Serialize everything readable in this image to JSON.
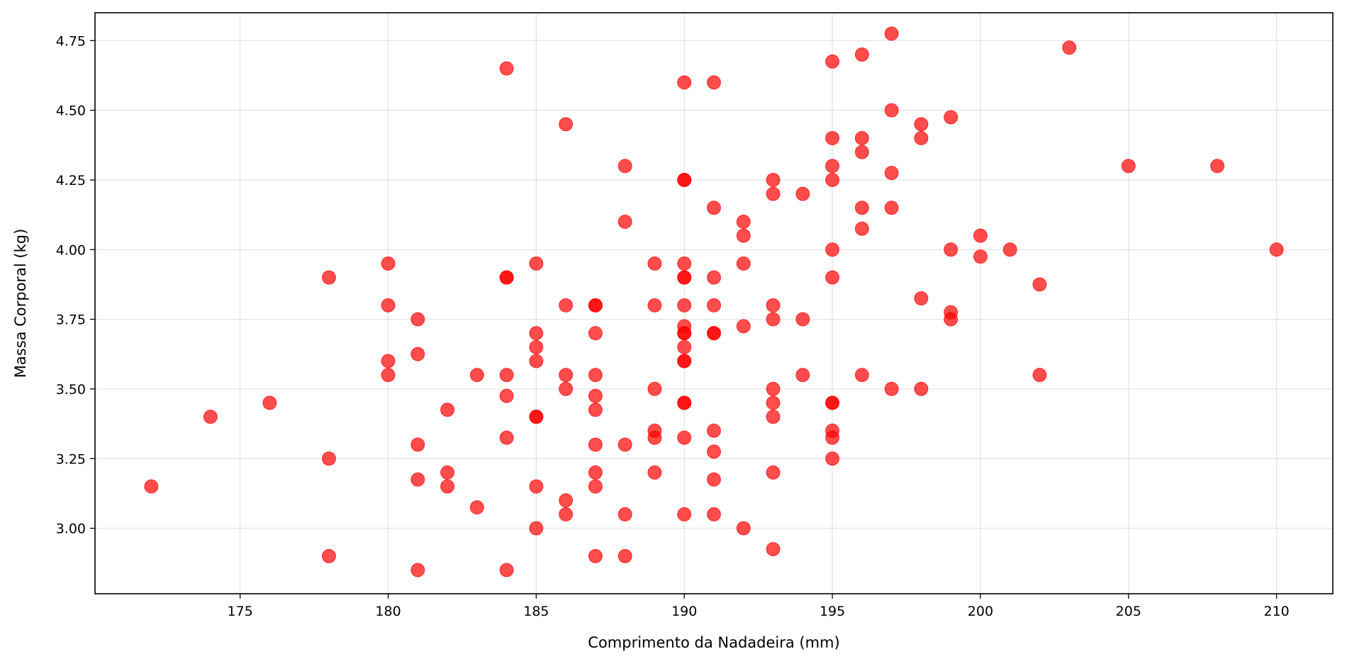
{
  "chart_data": {
    "type": "scatter",
    "title": "",
    "xlabel": "Comprimento da Nadadeira (mm)",
    "ylabel": "Massa Corporal (kg)",
    "xlim": [
      170.1,
      211.9
    ],
    "ylim": [
      2.765,
      4.85
    ],
    "xticks": [
      175,
      180,
      185,
      190,
      195,
      200,
      205,
      210
    ],
    "xtick_labels": [
      "175",
      "180",
      "185",
      "190",
      "195",
      "200",
      "205",
      "210"
    ],
    "yticks": [
      3.0,
      3.25,
      3.5,
      3.75,
      4.0,
      4.25,
      4.5,
      4.75
    ],
    "ytick_labels": [
      "3.00",
      "3.25",
      "3.50",
      "3.75",
      "4.00",
      "4.25",
      "4.50",
      "4.75"
    ],
    "grid": true,
    "marker_color": "#ff0000",
    "marker_opacity": 0.7,
    "points": [
      [
        172,
        3.15
      ],
      [
        174,
        3.4
      ],
      [
        176,
        3.45
      ],
      [
        178,
        3.9
      ],
      [
        178,
        3.25
      ],
      [
        178,
        2.9
      ],
      [
        180,
        3.95
      ],
      [
        180,
        3.8
      ],
      [
        180,
        3.6
      ],
      [
        180,
        3.55
      ],
      [
        181,
        3.75
      ],
      [
        181,
        3.625
      ],
      [
        181,
        3.3
      ],
      [
        181,
        3.175
      ],
      [
        181,
        2.85
      ],
      [
        182,
        3.425
      ],
      [
        182,
        3.2
      ],
      [
        182,
        3.15
      ],
      [
        183,
        3.55
      ],
      [
        183,
        3.075
      ],
      [
        184,
        4.65
      ],
      [
        184,
        3.9
      ],
      [
        184,
        3.9
      ],
      [
        184,
        3.55
      ],
      [
        184,
        3.475
      ],
      [
        184,
        3.325
      ],
      [
        184,
        2.85
      ],
      [
        185,
        3.95
      ],
      [
        185,
        3.7
      ],
      [
        185,
        3.65
      ],
      [
        185,
        3.6
      ],
      [
        185,
        3.4
      ],
      [
        185,
        3.4
      ],
      [
        185,
        3.15
      ],
      [
        185,
        3.0
      ],
      [
        186,
        4.45
      ],
      [
        186,
        3.8
      ],
      [
        186,
        3.55
      ],
      [
        186,
        3.5
      ],
      [
        186,
        3.1
      ],
      [
        186,
        3.05
      ],
      [
        187,
        3.8
      ],
      [
        187,
        3.8
      ],
      [
        187,
        3.7
      ],
      [
        187,
        3.55
      ],
      [
        187,
        3.475
      ],
      [
        187,
        3.425
      ],
      [
        187,
        3.3
      ],
      [
        187,
        3.2
      ],
      [
        187,
        3.15
      ],
      [
        187,
        2.9
      ],
      [
        188,
        4.3
      ],
      [
        188,
        4.1
      ],
      [
        188,
        3.3
      ],
      [
        188,
        3.05
      ],
      [
        188,
        2.9
      ],
      [
        189,
        3.95
      ],
      [
        189,
        3.8
      ],
      [
        189,
        3.5
      ],
      [
        189,
        3.35
      ],
      [
        189,
        3.325
      ],
      [
        189,
        3.2
      ],
      [
        190,
        4.6
      ],
      [
        190,
        4.25
      ],
      [
        190,
        4.25
      ],
      [
        190,
        3.95
      ],
      [
        190,
        3.9
      ],
      [
        190,
        3.9
      ],
      [
        190,
        3.8
      ],
      [
        190,
        3.725
      ],
      [
        190,
        3.7
      ],
      [
        190,
        3.7
      ],
      [
        190,
        3.65
      ],
      [
        190,
        3.6
      ],
      [
        190,
        3.6
      ],
      [
        190,
        3.45
      ],
      [
        190,
        3.45
      ],
      [
        190,
        3.325
      ],
      [
        190,
        3.05
      ],
      [
        191,
        4.6
      ],
      [
        191,
        4.15
      ],
      [
        191,
        3.9
      ],
      [
        191,
        3.8
      ],
      [
        191,
        3.7
      ],
      [
        191,
        3.7
      ],
      [
        191,
        3.35
      ],
      [
        191,
        3.275
      ],
      [
        191,
        3.175
      ],
      [
        191,
        3.05
      ],
      [
        192,
        4.1
      ],
      [
        192,
        4.05
      ],
      [
        192,
        3.95
      ],
      [
        192,
        3.725
      ],
      [
        192,
        3.0
      ],
      [
        193,
        4.25
      ],
      [
        193,
        4.2
      ],
      [
        193,
        3.8
      ],
      [
        193,
        3.75
      ],
      [
        193,
        3.5
      ],
      [
        193,
        3.45
      ],
      [
        193,
        3.4
      ],
      [
        193,
        3.2
      ],
      [
        193,
        2.925
      ],
      [
        194,
        4.2
      ],
      [
        194,
        3.75
      ],
      [
        194,
        3.55
      ],
      [
        195,
        4.675
      ],
      [
        195,
        4.4
      ],
      [
        195,
        4.3
      ],
      [
        195,
        4.25
      ],
      [
        195,
        4.0
      ],
      [
        195,
        3.9
      ],
      [
        195,
        3.45
      ],
      [
        195,
        3.45
      ],
      [
        195,
        3.35
      ],
      [
        195,
        3.325
      ],
      [
        195,
        3.25
      ],
      [
        196,
        4.7
      ],
      [
        196,
        4.4
      ],
      [
        196,
        4.35
      ],
      [
        196,
        4.15
      ],
      [
        196,
        4.075
      ],
      [
        196,
        3.55
      ],
      [
        197,
        4.775
      ],
      [
        197,
        4.5
      ],
      [
        197,
        4.275
      ],
      [
        197,
        4.15
      ],
      [
        197,
        3.5
      ],
      [
        198,
        4.45
      ],
      [
        198,
        4.4
      ],
      [
        198,
        3.825
      ],
      [
        198,
        3.5
      ],
      [
        199,
        4.475
      ],
      [
        199,
        4.0
      ],
      [
        199,
        3.775
      ],
      [
        199,
        3.75
      ],
      [
        200,
        4.05
      ],
      [
        200,
        3.975
      ],
      [
        201,
        4.0
      ],
      [
        202,
        3.875
      ],
      [
        202,
        3.55
      ],
      [
        203,
        4.725
      ],
      [
        205,
        4.3
      ],
      [
        208,
        4.3
      ],
      [
        210,
        4.0
      ]
    ]
  }
}
